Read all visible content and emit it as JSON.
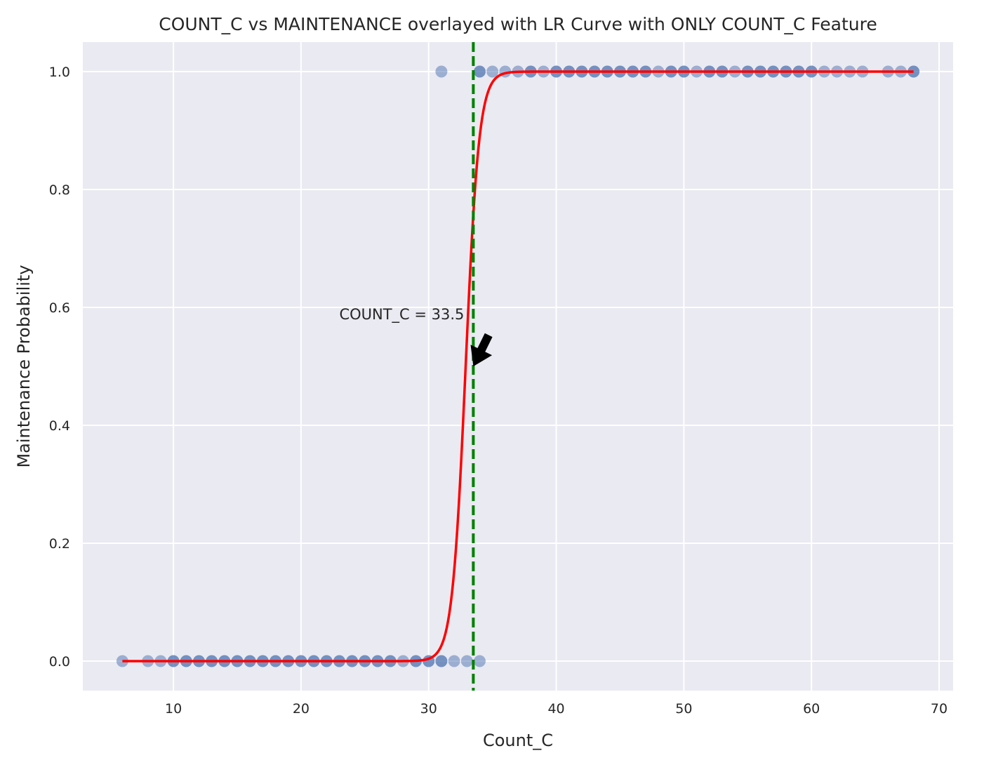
{
  "chart_data": {
    "type": "scatter",
    "title": "COUNT_C vs MAINTENANCE overlayed with LR Curve with ONLY COUNT_C Feature",
    "xlabel": "Count_C",
    "ylabel": "Maintenance Probability",
    "xlim": [
      2.9,
      71.1
    ],
    "ylim": [
      -0.05,
      1.05
    ],
    "xticks": [
      10,
      20,
      30,
      40,
      50,
      60,
      70
    ],
    "yticks": [
      0.0,
      0.2,
      0.4,
      0.6,
      0.8,
      1.0
    ],
    "xtick_labels": [
      "10",
      "20",
      "30",
      "40",
      "50",
      "60",
      "70"
    ],
    "ytick_labels": [
      "0.0",
      "0.2",
      "0.4",
      "0.6",
      "0.8",
      "1.0"
    ],
    "grid": true,
    "background": "#eaeaf2",
    "scatter": {
      "color": "#4c72b0",
      "opacity": 0.5,
      "points_y0": [
        6,
        8,
        9,
        10,
        10,
        11,
        11,
        12,
        12,
        13,
        13,
        14,
        14,
        15,
        15,
        16,
        16,
        17,
        17,
        18,
        18,
        19,
        19,
        20,
        20,
        21,
        21,
        22,
        22,
        23,
        23,
        24,
        24,
        25,
        25,
        26,
        26,
        27,
        27,
        28,
        29,
        29,
        30,
        30,
        31,
        31,
        32,
        33,
        34
      ],
      "points_y1": [
        31,
        34,
        34,
        35,
        36,
        37,
        38,
        38,
        39,
        40,
        40,
        41,
        41,
        42,
        42,
        43,
        43,
        44,
        44,
        45,
        45,
        46,
        46,
        47,
        47,
        48,
        49,
        49,
        50,
        50,
        51,
        52,
        52,
        53,
        53,
        54,
        55,
        55,
        56,
        56,
        57,
        57,
        58,
        58,
        59,
        59,
        60,
        60,
        61,
        62,
        63,
        64,
        66,
        67,
        68,
        68
      ]
    },
    "lr_curve": {
      "color": "#ff0000",
      "x_range": [
        6,
        68
      ],
      "midpoint": 32.9,
      "steepness": 1.9
    },
    "threshold_line": {
      "x": 33.5,
      "color": "#008000",
      "style": "dashed"
    },
    "annotation": {
      "text": "COUNT_C = 33.5",
      "point": [
        33.5,
        0.5
      ],
      "text_anchor": [
        23.0,
        0.58
      ]
    }
  }
}
